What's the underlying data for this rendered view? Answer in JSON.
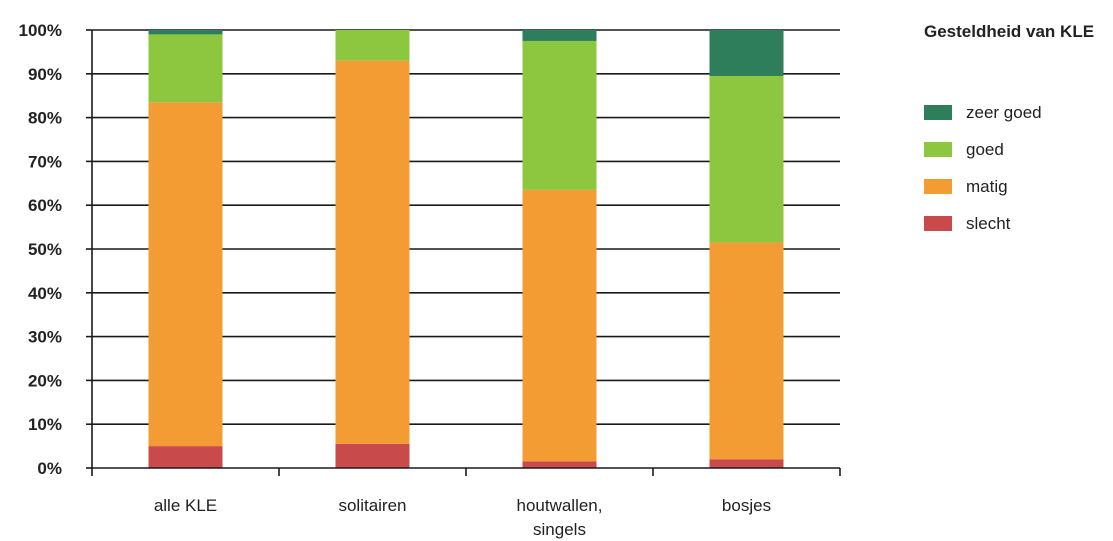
{
  "chart_data": {
    "type": "bar",
    "stacked": true,
    "categories": [
      [
        "alle KLE"
      ],
      [
        "solitairen"
      ],
      [
        "houtwallen,",
        "singels"
      ],
      [
        "bosjes"
      ]
    ],
    "series": [
      {
        "name": "slecht",
        "color": "#c94a4a",
        "values": [
          5,
          5.5,
          1.5,
          2
        ]
      },
      {
        "name": "matig",
        "color": "#f39c34",
        "values": [
          78.5,
          87.5,
          62,
          49.5
        ]
      },
      {
        "name": "goed",
        "color": "#8dc63f",
        "values": [
          15.5,
          7,
          34,
          38
        ]
      },
      {
        "name": "zeer goed",
        "color": "#2e7d5b",
        "values": [
          1,
          0,
          2.5,
          10.5
        ]
      }
    ],
    "yticks": [
      "0%",
      "10%",
      "20%",
      "30%",
      "40%",
      "50%",
      "60%",
      "70%",
      "80%",
      "90%",
      "100%"
    ],
    "ylim": [
      0,
      100
    ],
    "grid": true,
    "legend": {
      "title": "Gesteldheid van KLE",
      "position": "right",
      "order": [
        "zeer goed",
        "goed",
        "matig",
        "slecht"
      ]
    }
  }
}
